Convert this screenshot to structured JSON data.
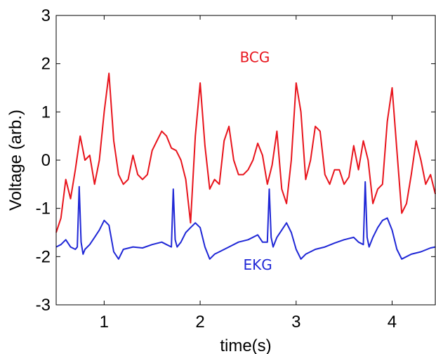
{
  "chart_data": {
    "type": "line",
    "title": "",
    "xlabel": "time(s)",
    "ylabel": "Voltage (arb.)",
    "xlim": [
      0.5,
      4.45
    ],
    "ylim": [
      -3,
      3
    ],
    "xticks": [
      1,
      2,
      3,
      4
    ],
    "yticks": [
      -3,
      -2,
      -1,
      0,
      1,
      2,
      3
    ],
    "grid": false,
    "legend": "none",
    "series": [
      {
        "name": "BCG",
        "color": "#e8141c",
        "x": [
          0.5,
          0.55,
          0.6,
          0.65,
          0.7,
          0.75,
          0.8,
          0.85,
          0.9,
          0.95,
          1.0,
          1.05,
          1.1,
          1.15,
          1.2,
          1.25,
          1.3,
          1.35,
          1.4,
          1.45,
          1.5,
          1.55,
          1.6,
          1.65,
          1.7,
          1.75,
          1.8,
          1.85,
          1.9,
          1.95,
          2.0,
          2.05,
          2.1,
          2.15,
          2.2,
          2.25,
          2.3,
          2.35,
          2.4,
          2.45,
          2.5,
          2.55,
          2.6,
          2.65,
          2.7,
          2.75,
          2.8,
          2.85,
          2.9,
          2.95,
          3.0,
          3.05,
          3.1,
          3.15,
          3.2,
          3.25,
          3.3,
          3.35,
          3.4,
          3.45,
          3.5,
          3.55,
          3.6,
          3.65,
          3.7,
          3.75,
          3.8,
          3.85,
          3.9,
          3.95,
          4.0,
          4.05,
          4.1,
          4.15,
          4.2,
          4.25,
          4.3,
          4.35,
          4.4,
          4.45
        ],
        "y": [
          -1.5,
          -1.2,
          -0.4,
          -0.8,
          -0.2,
          0.5,
          0.0,
          0.1,
          -0.5,
          0.0,
          1.0,
          1.8,
          0.4,
          -0.3,
          -0.5,
          -0.4,
          0.1,
          -0.3,
          -0.4,
          -0.3,
          0.2,
          0.4,
          0.6,
          0.5,
          0.25,
          0.2,
          0.0,
          -0.4,
          -1.3,
          0.5,
          1.6,
          0.3,
          -0.6,
          -0.4,
          -0.5,
          0.4,
          0.7,
          0.0,
          -0.3,
          -0.3,
          -0.2,
          0.0,
          0.35,
          0.1,
          -0.5,
          -0.1,
          0.6,
          -0.6,
          -0.9,
          0.0,
          1.6,
          1.0,
          -0.4,
          0.0,
          0.7,
          0.6,
          -0.3,
          -0.5,
          -0.2,
          -0.2,
          -0.5,
          -0.35,
          0.3,
          -0.2,
          0.4,
          0.0,
          -0.9,
          -0.6,
          -0.5,
          0.8,
          1.5,
          0.2,
          -1.1,
          -0.9,
          -0.3,
          0.4,
          0.0,
          -0.5,
          -0.3,
          -0.7
        ]
      },
      {
        "name": "EKG",
        "color": "#1f27d6",
        "x": [
          0.5,
          0.55,
          0.6,
          0.65,
          0.7,
          0.72,
          0.74,
          0.76,
          0.78,
          0.8,
          0.85,
          0.9,
          0.95,
          1.0,
          1.05,
          1.1,
          1.15,
          1.2,
          1.3,
          1.4,
          1.5,
          1.6,
          1.65,
          1.7,
          1.72,
          1.74,
          1.76,
          1.8,
          1.85,
          1.9,
          1.95,
          2.0,
          2.05,
          2.1,
          2.15,
          2.2,
          2.3,
          2.4,
          2.5,
          2.6,
          2.65,
          2.7,
          2.72,
          2.74,
          2.76,
          2.8,
          2.85,
          2.9,
          2.95,
          3.0,
          3.05,
          3.1,
          3.2,
          3.3,
          3.4,
          3.5,
          3.6,
          3.65,
          3.7,
          3.72,
          3.74,
          3.76,
          3.8,
          3.85,
          3.9,
          3.95,
          4.0,
          4.05,
          4.1,
          4.2,
          4.3,
          4.4,
          4.45
        ],
        "y": [
          -1.8,
          -1.75,
          -1.65,
          -1.8,
          -1.85,
          -1.8,
          -0.55,
          -1.7,
          -1.95,
          -1.85,
          -1.75,
          -1.6,
          -1.45,
          -1.25,
          -1.35,
          -1.9,
          -2.05,
          -1.85,
          -1.8,
          -1.82,
          -1.75,
          -1.7,
          -1.75,
          -1.8,
          -0.6,
          -1.65,
          -1.8,
          -1.7,
          -1.5,
          -1.4,
          -1.3,
          -1.4,
          -1.8,
          -2.05,
          -1.95,
          -1.9,
          -1.8,
          -1.7,
          -1.65,
          -1.55,
          -1.7,
          -1.7,
          -0.6,
          -1.6,
          -1.8,
          -1.6,
          -1.45,
          -1.3,
          -1.5,
          -1.85,
          -2.05,
          -1.95,
          -1.85,
          -1.8,
          -1.72,
          -1.65,
          -1.6,
          -1.7,
          -1.75,
          -0.45,
          -1.6,
          -1.8,
          -1.6,
          -1.4,
          -1.25,
          -1.2,
          -1.45,
          -1.85,
          -2.05,
          -1.95,
          -1.9,
          -1.82,
          -1.8
        ]
      }
    ],
    "annotations": [
      {
        "text": "BCG",
        "x": 2.57,
        "y": 2.03,
        "color": "#e8141c"
      },
      {
        "text": "EKG",
        "x": 2.6,
        "y": -2.27,
        "color": "#1f27d6"
      }
    ]
  }
}
